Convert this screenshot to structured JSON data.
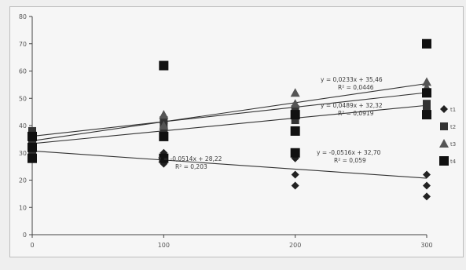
{
  "chart_data": {
    "type": "scatter",
    "title": "",
    "xlabel": "",
    "ylabel": "",
    "x_ticks": [
      "0",
      "100",
      "200",
      "300"
    ],
    "y_ticks": [
      "0",
      "10",
      "20",
      "30",
      "40",
      "50",
      "60",
      "70",
      "80"
    ],
    "xlim": [
      0,
      300
    ],
    "ylim": [
      0,
      80
    ],
    "grid": false,
    "legend_position": "right",
    "series": [
      {
        "name": "",
        "marker": "diamond",
        "points": [
          [
            0,
            32
          ],
          [
            0,
            34
          ],
          [
            0,
            28
          ],
          [
            100,
            26
          ],
          [
            100,
            30
          ],
          [
            100,
            36
          ],
          [
            200,
            18
          ],
          [
            200,
            22
          ],
          [
            200,
            28
          ],
          [
            300,
            14
          ],
          [
            300,
            18
          ],
          [
            300,
            22
          ]
        ],
        "trendline": {
          "slope": -0.0333,
          "intercept": 30.7
        }
      },
      {
        "name": "",
        "marker": "square",
        "points": [
          [
            0,
            34
          ],
          [
            0,
            38
          ],
          [
            0,
            30
          ],
          [
            100,
            38
          ],
          [
            100,
            40
          ],
          [
            100,
            42
          ],
          [
            200,
            44
          ],
          [
            200,
            46
          ],
          [
            200,
            42
          ],
          [
            300,
            44
          ],
          [
            300,
            46
          ],
          [
            300,
            48
          ]
        ],
        "trendline": {
          "slope": 0.0467,
          "intercept": 33.4
        }
      },
      {
        "name": "",
        "marker": "triangle",
        "points": [
          [
            0,
            36
          ],
          [
            0,
            32
          ],
          [
            100,
            44
          ],
          [
            100,
            40
          ],
          [
            200,
            52
          ],
          [
            200,
            48
          ],
          [
            300,
            52
          ],
          [
            300,
            54
          ],
          [
            300,
            56
          ]
        ],
        "trendline": {
          "slope": 0.07,
          "intercept": 34.4
        }
      },
      {
        "name": "",
        "marker": "square-large",
        "points": [
          [
            0,
            28
          ],
          [
            0,
            32
          ],
          [
            0,
            36
          ],
          [
            100,
            28
          ],
          [
            100,
            36
          ],
          [
            100,
            62
          ],
          [
            200,
            30
          ],
          [
            200,
            38
          ],
          [
            200,
            44
          ],
          [
            300,
            44
          ],
          [
            300,
            52
          ],
          [
            300,
            70
          ]
        ],
        "trendline": {
          "slope": 0.0533,
          "intercept": 36.1
        }
      }
    ],
    "equations": [
      {
        "text": "y = 0,0233x + 35,46",
        "r2": "R² = 0,0446"
      },
      {
        "text": "y = 0,0489x + 32,32",
        "r2": "R² = 0,0919"
      },
      {
        "text": "y = -0,0514x + 28,22",
        "r2": "R² = 0,203"
      },
      {
        "text": "y = -0,0516x + 32,70",
        "r2": "R² = 0,059"
      }
    ],
    "legend": [
      "t1",
      "t2",
      "t3",
      "t4"
    ]
  }
}
